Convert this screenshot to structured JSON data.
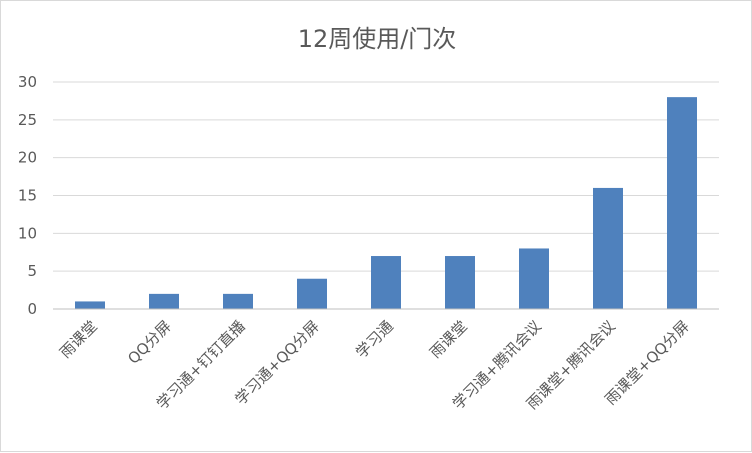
{
  "chart_data": {
    "type": "bar",
    "title": "12周使用/门次",
    "categories": [
      "雨课堂",
      "QQ分屏",
      "学习通+钉钉直播",
      "学习通+QQ分屏",
      "学习通",
      "雨课堂",
      "学习通+腾讯会议",
      "雨课堂+腾讯会议",
      "雨课堂+QQ分屏"
    ],
    "series": [
      {
        "values": [
          1,
          2,
          2,
          4,
          7,
          7,
          8,
          16,
          28
        ]
      }
    ],
    "ylim": [
      0,
      30
    ],
    "yticks": [
      0,
      5,
      10,
      15,
      20,
      25,
      30
    ],
    "xlabel": "",
    "ylabel": "",
    "grid": true,
    "legend": "none",
    "bar_color": "#4f81bd"
  }
}
